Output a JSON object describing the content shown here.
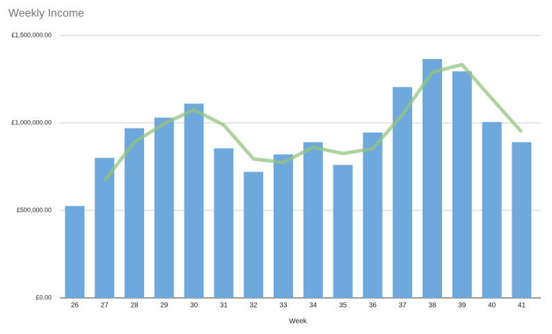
{
  "chart_data": {
    "type": "bar_line",
    "title": "Weekly Income",
    "x_label": "Week",
    "categories": [
      "26",
      "27",
      "28",
      "29",
      "30",
      "31",
      "32",
      "33",
      "34",
      "35",
      "36",
      "37",
      "38",
      "39",
      "40",
      "41"
    ],
    "series": [
      {
        "type": "bar",
        "color": "#6fa8dc",
        "values": [
          525000,
          800000,
          970000,
          1030000,
          1110000,
          855000,
          720000,
          820000,
          890000,
          760000,
          945000,
          1205000,
          1365000,
          1295000,
          1005000,
          890000
        ]
      },
      {
        "type": "line",
        "color": "#93c47d",
        "values": [
          null,
          670000,
          890000,
          996000,
          1075000,
          988000,
          794000,
          774000,
          861000,
          825000,
          853000,
          1048000,
          1290000,
          1333000,
          1139000,
          948000
        ]
      }
    ],
    "ylim": [
      0,
      1500000
    ],
    "yticks": [
      {
        "value": 0,
        "label": "£0.00"
      },
      {
        "value": 500000,
        "label": "£500,000.00"
      },
      {
        "value": 1000000,
        "label": "£1,000,000.00"
      },
      {
        "value": 1500000,
        "label": "£1,500,000.00"
      }
    ],
    "grid": true
  }
}
